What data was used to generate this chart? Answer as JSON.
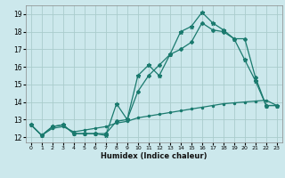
{
  "title": "",
  "xlabel": "Humidex (Indice chaleur)",
  "ylabel": "",
  "background_color": "#cce8ec",
  "grid_color": "#aacccc",
  "line_color": "#1a7a6e",
  "xlim": [
    -0.5,
    23.5
  ],
  "ylim": [
    11.7,
    19.5
  ],
  "xticks": [
    0,
    1,
    2,
    3,
    4,
    5,
    6,
    7,
    8,
    9,
    10,
    11,
    12,
    13,
    14,
    15,
    16,
    17,
    18,
    19,
    20,
    21,
    22,
    23
  ],
  "yticks": [
    12,
    13,
    14,
    15,
    16,
    17,
    18,
    19
  ],
  "line1_x": [
    0,
    1,
    2,
    3,
    4,
    5,
    6,
    7,
    8,
    9,
    10,
    11,
    12,
    13,
    14,
    15,
    16,
    17,
    18,
    19,
    20,
    21,
    22,
    23
  ],
  "line1_y": [
    12.7,
    12.1,
    12.6,
    12.7,
    12.2,
    12.2,
    12.2,
    12.1,
    13.9,
    13.0,
    15.5,
    16.1,
    15.5,
    16.7,
    18.0,
    18.3,
    19.1,
    18.5,
    18.1,
    17.6,
    16.4,
    15.2,
    13.8,
    13.8
  ],
  "line2_x": [
    0,
    1,
    2,
    3,
    4,
    5,
    6,
    7,
    8,
    9,
    10,
    11,
    12,
    13,
    14,
    15,
    16,
    17,
    18,
    19,
    20,
    21,
    22,
    23
  ],
  "line2_y": [
    12.7,
    12.1,
    12.6,
    12.7,
    12.2,
    12.2,
    12.2,
    12.2,
    12.9,
    13.0,
    14.6,
    15.5,
    16.1,
    16.7,
    17.0,
    17.4,
    18.5,
    18.1,
    18.0,
    17.6,
    17.6,
    15.4,
    13.8,
    13.8
  ],
  "line3_x": [
    0,
    1,
    2,
    3,
    4,
    5,
    6,
    7,
    8,
    9,
    10,
    11,
    12,
    13,
    14,
    15,
    16,
    17,
    18,
    19,
    20,
    21,
    22,
    23
  ],
  "line3_y": [
    12.7,
    12.1,
    12.5,
    12.6,
    12.3,
    12.4,
    12.5,
    12.6,
    12.8,
    12.9,
    13.1,
    13.2,
    13.3,
    13.4,
    13.5,
    13.6,
    13.7,
    13.8,
    13.9,
    13.95,
    14.0,
    14.05,
    14.1,
    13.8
  ]
}
